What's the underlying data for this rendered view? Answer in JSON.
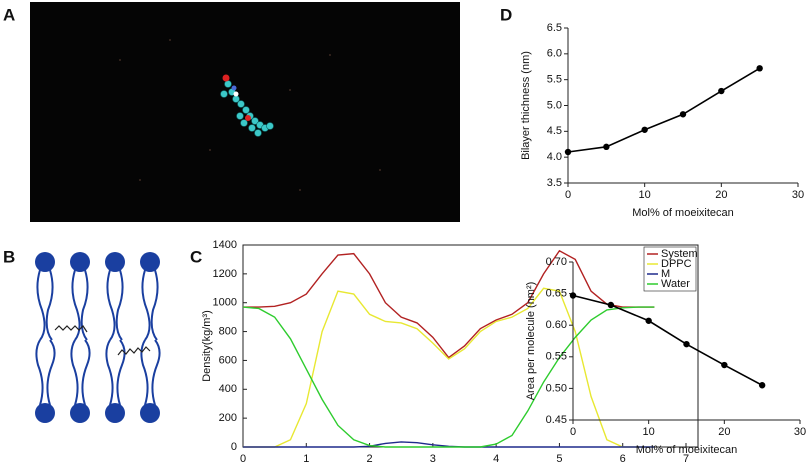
{
  "labels": [
    "A",
    "B",
    "C",
    "D"
  ],
  "chart_data": [
    {
      "type": "line",
      "ylabel": "Density(kg/m³)",
      "x": [
        0,
        0.25,
        0.5,
        0.75,
        1,
        1.25,
        1.5,
        1.75,
        2,
        2.25,
        2.5,
        2.75,
        3,
        3.25,
        3.5,
        3.75,
        4,
        4.25,
        4.5,
        4.75,
        5,
        5.25,
        5.5,
        5.75,
        6,
        6.25,
        6.5
      ],
      "series": [
        {
          "name": "System",
          "color": "#b22222",
          "values": [
            970,
            970,
            975,
            1000,
            1060,
            1200,
            1330,
            1340,
            1200,
            1000,
            900,
            860,
            760,
            620,
            700,
            820,
            880,
            920,
            1000,
            1200,
            1360,
            1300,
            1080,
            990,
            970,
            970,
            970
          ]
        },
        {
          "name": "DPPC",
          "color": "#e8e832",
          "values": [
            0,
            0,
            0,
            50,
            300,
            800,
            1080,
            1060,
            920,
            870,
            860,
            820,
            720,
            610,
            680,
            800,
            870,
            900,
            960,
            1100,
            1080,
            800,
            350,
            50,
            0,
            0,
            0
          ]
        },
        {
          "name": "M",
          "color": "#1f2a8c",
          "values": [
            0,
            0,
            0,
            0,
            0,
            0,
            0,
            0,
            5,
            25,
            35,
            30,
            15,
            5,
            0,
            0,
            0,
            0,
            0,
            0,
            0,
            0,
            0,
            0,
            0,
            0,
            0
          ]
        },
        {
          "name": "Water",
          "color": "#2ecc2e",
          "values": [
            970,
            960,
            900,
            750,
            540,
            330,
            150,
            50,
            10,
            0,
            0,
            0,
            0,
            0,
            0,
            0,
            20,
            80,
            250,
            450,
            620,
            760,
            880,
            950,
            965,
            970,
            970
          ]
        }
      ],
      "xlim": [
        0,
        7
      ],
      "xticks": [
        0,
        1,
        2,
        3,
        4,
        5,
        6,
        7
      ],
      "ylim": [
        0,
        1400
      ],
      "yticks": [
        0,
        200,
        400,
        600,
        800,
        1000,
        1200,
        1400
      ],
      "legend": "upper right"
    },
    {
      "type": "line",
      "xlabel": "Mol% of moeixitecan",
      "ylabel": "Bilayer thichness (nm)",
      "x": [
        0,
        5,
        10,
        15,
        20,
        25
      ],
      "values": [
        4.1,
        4.2,
        4.53,
        4.83,
        5.28,
        5.72
      ],
      "color": "#000000",
      "marker": true,
      "xlim": [
        0,
        30
      ],
      "xticks": [
        0,
        10,
        20,
        30
      ],
      "ylim": [
        3.5,
        6.5
      ],
      "yticks": [
        3.5,
        {
          "value": 4,
          "label": "4.0"
        },
        4.5,
        {
          "value": 5,
          "label": "5.0"
        },
        5.5,
        {
          "value": 6,
          "label": "6.0"
        },
        6.5
      ]
    },
    {
      "type": "line",
      "xlabel": "Mol% of moeixitecan",
      "ylabel": "Area per molecule (nm²)",
      "x": [
        0,
        5,
        10,
        15,
        20,
        25
      ],
      "values": [
        0.647,
        0.632,
        0.607,
        0.57,
        0.537,
        0.505
      ],
      "color": "#000000",
      "marker": true,
      "xlim": [
        0,
        30
      ],
      "xticks": [
        0,
        10,
        20,
        30
      ],
      "ylim": [
        0.45,
        0.7
      ],
      "yticks": [
        0.45,
        {
          "value": 0.5,
          "label": "0.50"
        },
        0.55,
        {
          "value": 0.6,
          "label": "0.60"
        },
        0.65,
        {
          "value": 0.7,
          "label": "0.70"
        }
      ]
    }
  ]
}
